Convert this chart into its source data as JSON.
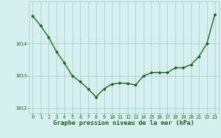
{
  "x": [
    0,
    1,
    2,
    3,
    4,
    5,
    6,
    7,
    8,
    9,
    10,
    11,
    12,
    13,
    14,
    15,
    16,
    17,
    18,
    19,
    20,
    21,
    22,
    23
  ],
  "y": [
    1014.85,
    1014.55,
    1014.2,
    1013.75,
    1013.4,
    1013.0,
    1012.82,
    1012.6,
    1012.35,
    1012.6,
    1012.75,
    1012.78,
    1012.77,
    1012.72,
    1013.0,
    1013.1,
    1013.1,
    1013.1,
    1013.25,
    1013.25,
    1013.35,
    1013.6,
    1014.0,
    1014.9
  ],
  "line_color": "#1a5c1a",
  "marker": "D",
  "marker_size": 2.2,
  "linewidth": 1.0,
  "bg_color": "#d6f0f0",
  "grid_color": "#a8cece",
  "xlabel": "Graphe pression niveau de la mer (hPa)",
  "xlabel_fontsize": 6.5,
  "xlabel_color": "#1a5c1a",
  "ylabel_ticks": [
    1012,
    1013,
    1014
  ],
  "ylim": [
    1011.85,
    1015.3
  ],
  "xlim": [
    -0.5,
    23.5
  ],
  "xticks": [
    0,
    1,
    2,
    3,
    4,
    5,
    6,
    7,
    8,
    9,
    10,
    11,
    12,
    13,
    14,
    15,
    16,
    17,
    18,
    19,
    20,
    21,
    22,
    23
  ],
  "tick_fontsize": 5.0,
  "tick_color": "#1a5c1a"
}
